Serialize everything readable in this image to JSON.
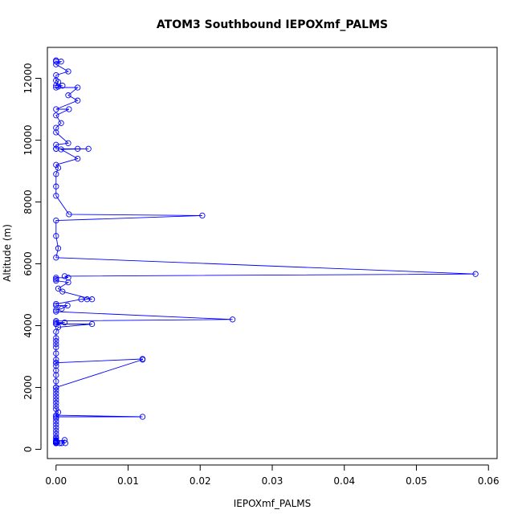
{
  "chart_data": {
    "type": "line",
    "title": "ATOM3 Southbound IEPOXmf_PALMS",
    "xlabel": "IEPOXmf_PALMS",
    "ylabel": "Altitude (m)",
    "xlim": [
      -0.0012,
      0.0612
    ],
    "ylim": [
      -300,
      13000
    ],
    "x_ticks": [
      "0.00",
      "0.01",
      "0.02",
      "0.03",
      "0.04",
      "0.05",
      "0.06"
    ],
    "y_ticks": [
      "0",
      "2000",
      "4000",
      "6000",
      "8000",
      "10000",
      "12000"
    ],
    "grid": false,
    "legend": "none",
    "series_color": "#0000ff",
    "series": [
      {
        "x": [
          0.0,
          0.0,
          0.0007,
          0.0,
          0.0017,
          0.0,
          0.0,
          0.0003,
          0.0,
          0.0009,
          0.0003,
          0.0,
          0.003,
          0.0017,
          0.003,
          0.0,
          0.0018,
          0.0,
          0.0007,
          0.0,
          0.0,
          0.0017,
          0.0,
          0.0,
          0.0,
          0.003,
          0.0045,
          0.0007,
          0.003,
          0.0,
          0.0003,
          0.0,
          0.0,
          0.0,
          0.0018,
          0.0203,
          0.0,
          0.0,
          0.0003,
          0.0,
          0.0582,
          0.0012,
          0.0017,
          0.0,
          0.0,
          0.0,
          0.0017,
          0.0003,
          0.0009,
          0.005,
          0.0043,
          0.0035,
          0.0,
          0.0,
          0.0016,
          0.0008,
          0.0,
          0.0,
          0.0245,
          0.0,
          0.0,
          0.0012,
          0.0,
          0.0,
          0.005,
          0.0003,
          0.0,
          0.0,
          0.0,
          0.0,
          0.0,
          0.0,
          0.0,
          0.0,
          0.0,
          0.0,
          0.0,
          0.0,
          0.0,
          0.0,
          0.0,
          0.0,
          0.0,
          0.0,
          0.0,
          0.0,
          0.0003,
          0.0,
          0.012,
          0.0,
          0.0,
          0.012,
          0.012,
          0.0,
          0.0,
          0.0,
          0.0,
          0.0,
          0.0,
          0.0,
          0.0,
          0.0,
          0.0,
          0.0,
          0.0,
          0.0,
          0.0,
          0.0,
          0.0,
          0.0,
          0.0,
          0.0,
          0.0,
          0.0,
          0.0,
          0.0005,
          0.0013,
          0.0008,
          0.0012,
          0.0,
          0.0,
          0.0,
          0.0,
          0.0
        ],
        "y": [
          12580,
          12540,
          12540,
          12450,
          12220,
          12100,
          11930,
          11880,
          11770,
          11760,
          11730,
          11700,
          11700,
          11450,
          11280,
          11000,
          11000,
          10800,
          10550,
          10400,
          10250,
          9900,
          9850,
          9720,
          9720,
          9720,
          9720,
          9700,
          9400,
          9200,
          9100,
          8900,
          8500,
          8200,
          7600,
          7560,
          7400,
          6900,
          6500,
          6200,
          5670,
          5600,
          5550,
          5550,
          5500,
          5450,
          5400,
          5200,
          5100,
          4850,
          4850,
          4850,
          4700,
          4650,
          4650,
          4550,
          4500,
          4450,
          4200,
          4150,
          4100,
          4100,
          4050,
          4050,
          4050,
          3950,
          3800,
          3600,
          3500,
          3400,
          3300,
          3100,
          2900,
          2800,
          2700,
          2550,
          2400,
          2200,
          2000,
          1900,
          1800,
          1700,
          1600,
          1500,
          1400,
          1300,
          1200,
          1100,
          1050,
          1050,
          2000,
          2900,
          2920,
          2800,
          2000,
          1000,
          900,
          800,
          700,
          600,
          500,
          400,
          350,
          300,
          280,
          260,
          240,
          220,
          200,
          200,
          200,
          200,
          200,
          200,
          200,
          200,
          200,
          200,
          300,
          250,
          200,
          200,
          200,
          200
        ]
      }
    ]
  }
}
